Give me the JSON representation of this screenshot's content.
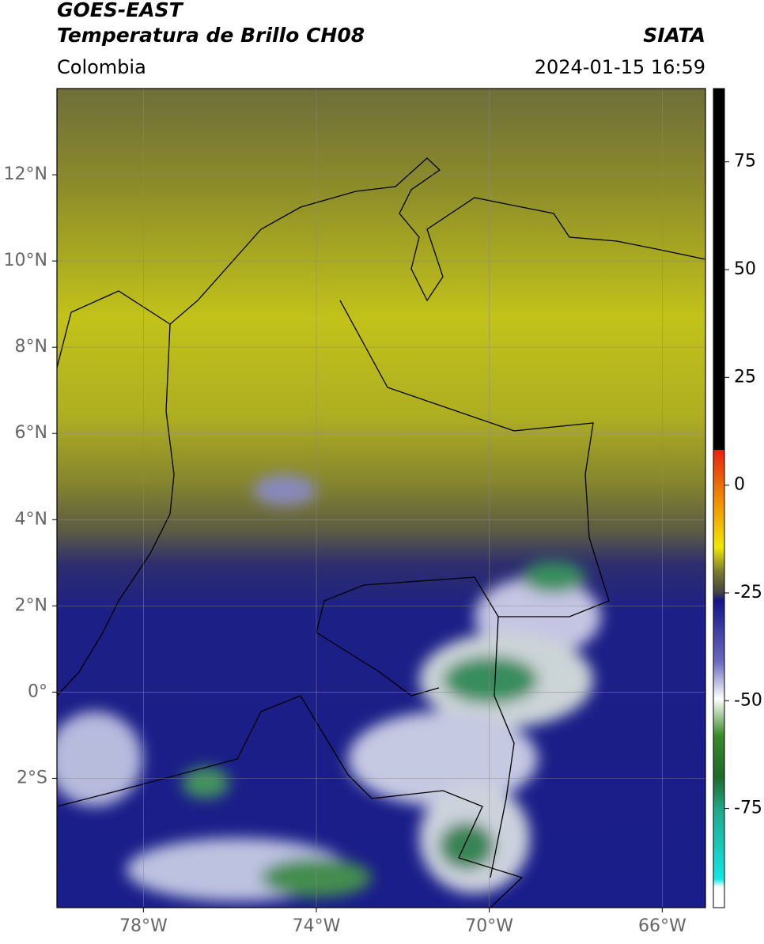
{
  "header": {
    "title": "GOES-EAST",
    "subtitle": "Temperatura de Brillo CH08",
    "source": "SIATA",
    "region": "Colombia",
    "datetime": "2024-01-15 16:59"
  },
  "map": {
    "xlim": [
      -80,
      -65
    ],
    "ylim": [
      -5,
      14
    ],
    "xticks": [
      {
        "value": -78,
        "label": "78°W"
      },
      {
        "value": -74,
        "label": "74°W"
      },
      {
        "value": -70,
        "label": "70°W"
      },
      {
        "value": -66,
        "label": "66°W"
      }
    ],
    "yticks": [
      {
        "value": 12,
        "label": "12°N"
      },
      {
        "value": 10,
        "label": "10°N"
      },
      {
        "value": 8,
        "label": "8°N"
      },
      {
        "value": 6,
        "label": "6°N"
      },
      {
        "value": 4,
        "label": "4°N"
      },
      {
        "value": 2,
        "label": "2°N"
      },
      {
        "value": 0,
        "label": "0°"
      },
      {
        "value": -2,
        "label": "2°S"
      }
    ],
    "grid": true
  },
  "colorbar": {
    "lim": [
      -98,
      92
    ],
    "ticks": [
      75,
      50,
      25,
      0,
      -25,
      -50,
      -75
    ]
  }
}
